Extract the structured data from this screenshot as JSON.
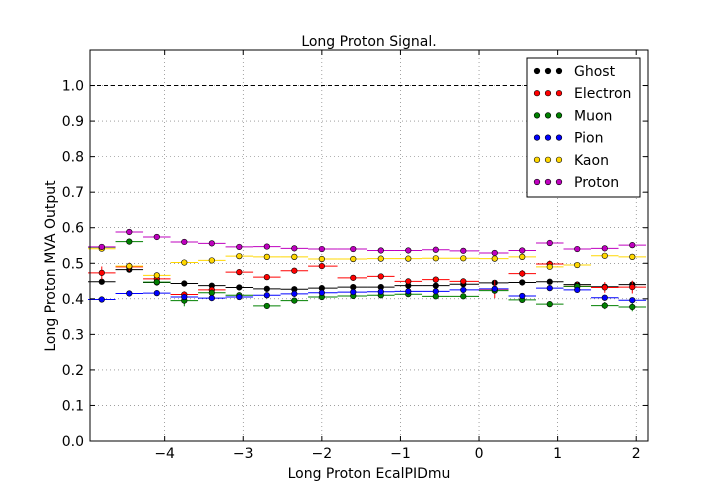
{
  "chart_data": {
    "type": "step-errorbar",
    "title": "Long Proton Signal.",
    "xlabel": "Long Proton EcalPIDmu",
    "ylabel": "Long Proton MVA Output",
    "xlim": [
      -4.95,
      2.15
    ],
    "ylim": [
      0.0,
      1.1
    ],
    "xticks": [
      -4,
      -3,
      -2,
      -1,
      0,
      1,
      2
    ],
    "xtick_labels": [
      "−4",
      "−3",
      "−2",
      "−1",
      "0",
      "1",
      "2"
    ],
    "yticks": [
      0.0,
      0.1,
      0.2,
      0.3,
      0.4,
      0.5,
      0.6,
      0.7,
      0.8,
      0.9,
      1.0
    ],
    "ytick_labels": [
      "0.0",
      "0.1",
      "0.2",
      "0.3",
      "0.4",
      "0.5",
      "0.6",
      "0.7",
      "0.8",
      "0.9",
      "1.0"
    ],
    "grid": true,
    "reference_line": 1.0,
    "legend_position": "top-right",
    "x": [
      -4.8,
      -4.45,
      -4.1,
      -3.75,
      -3.4,
      -3.05,
      -2.7,
      -2.35,
      -2.0,
      -1.6,
      -1.25,
      -0.9,
      -0.55,
      -0.2,
      0.2,
      0.55,
      0.9,
      1.25,
      1.6,
      1.95
    ],
    "series": [
      {
        "name": "Ghost",
        "color": "#000000",
        "values": [
          0.448,
          0.482,
          0.446,
          0.443,
          0.437,
          0.432,
          0.428,
          0.427,
          0.43,
          0.433,
          0.433,
          0.437,
          0.437,
          0.441,
          0.445,
          0.446,
          0.448,
          0.44,
          0.434,
          0.44
        ],
        "errors": [
          0.006,
          0.005,
          0.004,
          0.004,
          0.003,
          0.003,
          0.003,
          0.003,
          0.003,
          0.003,
          0.003,
          0.003,
          0.003,
          0.003,
          0.003,
          0.003,
          0.004,
          0.004,
          0.005,
          0.006
        ]
      },
      {
        "name": "Electron",
        "color": "#ff0000",
        "values": [
          0.473,
          0.49,
          0.456,
          0.412,
          0.425,
          0.475,
          0.461,
          0.479,
          0.492,
          0.459,
          0.463,
          0.449,
          0.454,
          0.449,
          0.427,
          0.471,
          0.498,
          0.435,
          0.432,
          0.433
        ],
        "errors": [
          0.018,
          0.012,
          0.01,
          0.009,
          0.008,
          0.007,
          0.006,
          0.006,
          0.006,
          0.006,
          0.006,
          0.006,
          0.006,
          0.007,
          0.025,
          0.01,
          0.01,
          0.012,
          0.015,
          0.018
        ]
      },
      {
        "name": "Muon",
        "color": "#008000",
        "values": [
          0.545,
          0.561,
          0.447,
          0.395,
          0.417,
          0.41,
          0.38,
          0.395,
          0.405,
          0.408,
          0.41,
          0.413,
          0.407,
          0.407,
          0.423,
          0.397,
          0.385,
          0.435,
          0.381,
          0.377
        ],
        "errors": [
          0.008,
          0.006,
          0.005,
          0.016,
          0.006,
          0.006,
          0.006,
          0.005,
          0.005,
          0.005,
          0.005,
          0.005,
          0.005,
          0.005,
          0.006,
          0.006,
          0.007,
          0.008,
          0.01,
          0.012
        ]
      },
      {
        "name": "Pion",
        "color": "#0000ff",
        "values": [
          0.398,
          0.415,
          0.416,
          0.405,
          0.402,
          0.405,
          0.41,
          0.414,
          0.417,
          0.419,
          0.42,
          0.421,
          0.421,
          0.425,
          0.428,
          0.408,
          0.43,
          0.425,
          0.403,
          0.396
        ],
        "errors": [
          0.004,
          0.003,
          0.003,
          0.003,
          0.003,
          0.002,
          0.002,
          0.002,
          0.002,
          0.002,
          0.002,
          0.002,
          0.002,
          0.002,
          0.002,
          0.003,
          0.003,
          0.003,
          0.004,
          0.005
        ]
      },
      {
        "name": "Kaon",
        "color": "#ffd700",
        "values": [
          0.541,
          0.492,
          0.466,
          0.502,
          0.508,
          0.52,
          0.518,
          0.518,
          0.512,
          0.512,
          0.513,
          0.513,
          0.514,
          0.514,
          0.513,
          0.518,
          0.49,
          0.495,
          0.521,
          0.518
        ],
        "errors": [
          0.006,
          0.005,
          0.004,
          0.004,
          0.003,
          0.003,
          0.003,
          0.003,
          0.003,
          0.003,
          0.003,
          0.003,
          0.003,
          0.003,
          0.003,
          0.004,
          0.004,
          0.005,
          0.006,
          0.007
        ]
      },
      {
        "name": "Proton",
        "color": "#bf00bf",
        "values": [
          0.546,
          0.588,
          0.574,
          0.56,
          0.556,
          0.546,
          0.547,
          0.542,
          0.54,
          0.54,
          0.536,
          0.536,
          0.538,
          0.535,
          0.529,
          0.536,
          0.557,
          0.54,
          0.542,
          0.551
        ],
        "errors": [
          0.004,
          0.003,
          0.003,
          0.003,
          0.003,
          0.002,
          0.002,
          0.002,
          0.002,
          0.002,
          0.002,
          0.002,
          0.002,
          0.002,
          0.002,
          0.003,
          0.003,
          0.003,
          0.004,
          0.005
        ]
      }
    ]
  }
}
